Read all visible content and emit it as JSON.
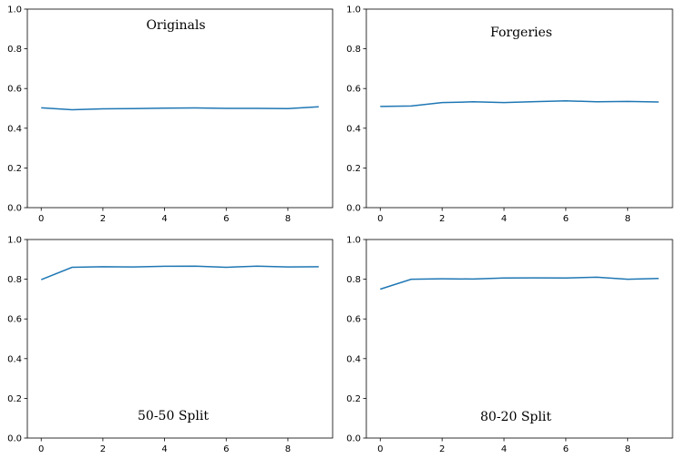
{
  "chart_data": [
    {
      "type": "line",
      "title": "Originals",
      "x": [
        0,
        1,
        2,
        3,
        4,
        5,
        6,
        7,
        8,
        9
      ],
      "series": [
        {
          "values": [
            0.503,
            0.493,
            0.498,
            0.499,
            0.501,
            0.502,
            0.5,
            0.5,
            0.499,
            0.508
          ]
        }
      ],
      "xticks": [
        0,
        2,
        4,
        6,
        8
      ],
      "yticks": [
        0.0,
        0.2,
        0.4,
        0.6,
        0.8,
        1.0
      ],
      "xlim": [
        -0.45,
        9.45
      ],
      "ylim": [
        0,
        1
      ],
      "grid": false,
      "color": "#1f77b4"
    },
    {
      "type": "line",
      "title": "Forgeries",
      "x": [
        0,
        1,
        2,
        3,
        4,
        5,
        6,
        7,
        8,
        9
      ],
      "series": [
        {
          "values": [
            0.51,
            0.512,
            0.529,
            0.533,
            0.529,
            0.534,
            0.538,
            0.533,
            0.535,
            0.532
          ]
        }
      ],
      "xticks": [
        0,
        2,
        4,
        6,
        8
      ],
      "yticks": [
        0.0,
        0.2,
        0.4,
        0.6,
        0.8,
        1.0
      ],
      "xlim": [
        -0.45,
        9.45
      ],
      "ylim": [
        0,
        1
      ],
      "grid": false,
      "color": "#1f77b4"
    },
    {
      "type": "line",
      "title": "50-50 Split",
      "x": [
        0,
        1,
        2,
        3,
        4,
        5,
        6,
        7,
        8,
        9
      ],
      "series": [
        {
          "values": [
            0.798,
            0.86,
            0.863,
            0.862,
            0.865,
            0.866,
            0.86,
            0.866,
            0.862,
            0.863
          ]
        }
      ],
      "xticks": [
        0,
        2,
        4,
        6,
        8
      ],
      "yticks": [
        0.0,
        0.2,
        0.4,
        0.6,
        0.8,
        1.0
      ],
      "xlim": [
        -0.45,
        9.45
      ],
      "ylim": [
        0,
        1
      ],
      "grid": false,
      "color": "#1f77b4"
    },
    {
      "type": "line",
      "title": "80-20 Split",
      "x": [
        0,
        1,
        2,
        3,
        4,
        5,
        6,
        7,
        8,
        9
      ],
      "series": [
        {
          "values": [
            0.75,
            0.8,
            0.802,
            0.801,
            0.806,
            0.807,
            0.806,
            0.81,
            0.8,
            0.804
          ]
        }
      ],
      "xticks": [
        0,
        2,
        4,
        6,
        8
      ],
      "yticks": [
        0.0,
        0.2,
        0.4,
        0.6,
        0.8,
        1.0
      ],
      "xlim": [
        -0.45,
        9.45
      ],
      "ylim": [
        0,
        1
      ],
      "grid": false,
      "color": "#1f77b4"
    }
  ]
}
